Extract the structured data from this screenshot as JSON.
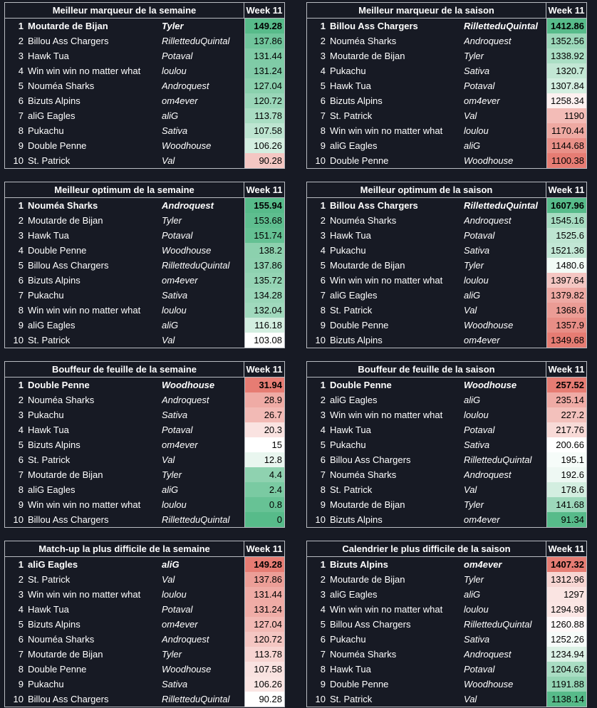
{
  "header_week": "Week 11",
  "tables": [
    {
      "title": "Meilleur marqueur de la semaine",
      "rows": [
        {
          "rank": "1",
          "team": "Moutarde de Bijan",
          "owner": "Tyler",
          "score": "149.28",
          "color": "#57bb8a"
        },
        {
          "rank": "2",
          "team": "Billou Ass Chargers",
          "owner": "RilletteduQuintal",
          "score": "137.86",
          "color": "#70c59c"
        },
        {
          "rank": "3",
          "team": "Hawk Tua",
          "owner": "Potaval",
          "score": "131.44",
          "color": "#7fcba6"
        },
        {
          "rank": "4",
          "team": "Win win win no matter what",
          "owner": "loulou",
          "score": "131.24",
          "color": "#80cba7"
        },
        {
          "rank": "5",
          "team": "Nouméa Sharks",
          "owner": "Androquest",
          "score": "127.04",
          "color": "#8ad0ad"
        },
        {
          "rank": "6",
          "team": "Bizuts Alpins",
          "owner": "om4ever",
          "score": "120.72",
          "color": "#99d6b8"
        },
        {
          "rank": "7",
          "team": "aliG Eagles",
          "owner": "aliG",
          "score": "113.78",
          "color": "#a9ddc3"
        },
        {
          "rank": "8",
          "team": "Pukachu",
          "owner": "Sativa",
          "score": "107.58",
          "color": "#bde5d1"
        },
        {
          "rank": "9",
          "team": "Double Penne",
          "owner": "Woodhouse",
          "score": "106.26",
          "color": "#d3eee0"
        },
        {
          "rank": "10",
          "team": "St. Patrick",
          "owner": "Val",
          "score": "90.28",
          "color": "#f4c7c3"
        }
      ]
    },
    {
      "title": "Meilleur marqueur de la saison",
      "rows": [
        {
          "rank": "1",
          "team": "Billou Ass Chargers",
          "owner": "RilletteduQuintal",
          "score": "1412.86",
          "color": "#57bb8a"
        },
        {
          "rank": "2",
          "team": "Nouméa Sharks",
          "owner": "Androquest",
          "score": "1352.56",
          "color": "#9bd7b9"
        },
        {
          "rank": "3",
          "team": "Moutarde de Bijan",
          "owner": "Tyler",
          "score": "1338.92",
          "color": "#aadec4"
        },
        {
          "rank": "4",
          "team": "Pukachu",
          "owner": "Sativa",
          "score": "1320.7",
          "color": "#c2e7d4"
        },
        {
          "rank": "5",
          "team": "Hawk Tua",
          "owner": "Potaval",
          "score": "1307.84",
          "color": "#d3eee0"
        },
        {
          "rank": "6",
          "team": "Bizuts Alpins",
          "owner": "om4ever",
          "score": "1258.34",
          "color": "#fdf1f0"
        },
        {
          "rank": "7",
          "team": "St. Patrick",
          "owner": "Val",
          "score": "1190",
          "color": "#f3bcb7"
        },
        {
          "rank": "8",
          "team": "Win win win no matter what",
          "owner": "loulou",
          "score": "1170.44",
          "color": "#eea9a2"
        },
        {
          "rank": "9",
          "team": "aliG Eagles",
          "owner": "aliG",
          "score": "1144.68",
          "color": "#e99088"
        },
        {
          "rank": "10",
          "team": "Double Penne",
          "owner": "Woodhouse",
          "score": "1100.38",
          "color": "#e67c73"
        }
      ]
    },
    {
      "title": "Meilleur optimum de la semaine",
      "rows": [
        {
          "rank": "1",
          "team": "Nouméa Sharks",
          "owner": "Androquest",
          "score": "155.94",
          "color": "#57bb8a"
        },
        {
          "rank": "2",
          "team": "Moutarde de Bijan",
          "owner": "Tyler",
          "score": "153.68",
          "color": "#5ebe8f"
        },
        {
          "rank": "3",
          "team": "Hawk Tua",
          "owner": "Potaval",
          "score": "151.74",
          "color": "#64c193"
        },
        {
          "rank": "4",
          "team": "Double Penne",
          "owner": "Woodhouse",
          "score": "138.2",
          "color": "#8cd1ae"
        },
        {
          "rank": "5",
          "team": "Billou Ass Chargers",
          "owner": "RilletteduQuintal",
          "score": "137.86",
          "color": "#8ed1b0"
        },
        {
          "rank": "6",
          "team": "Bizuts Alpins",
          "owner": "om4ever",
          "score": "135.72",
          "color": "#94d4b4"
        },
        {
          "rank": "7",
          "team": "Pukachu",
          "owner": "Sativa",
          "score": "134.28",
          "color": "#99d6b8"
        },
        {
          "rank": "8",
          "team": "Win win win no matter what",
          "owner": "loulou",
          "score": "132.04",
          "color": "#a0d9bd"
        },
        {
          "rank": "9",
          "team": "aliG Eagles",
          "owner": "aliG",
          "score": "116.18",
          "color": "#d3eee0"
        },
        {
          "rank": "10",
          "team": "St. Patrick",
          "owner": "Val",
          "score": "103.08",
          "color": "#ffffff"
        }
      ]
    },
    {
      "title": "Meilleur optimum de la saison",
      "rows": [
        {
          "rank": "1",
          "team": "Billou Ass Chargers",
          "owner": "RilletteduQuintal",
          "score": "1607.96",
          "color": "#57bb8a"
        },
        {
          "rank": "2",
          "team": "Nouméa Sharks",
          "owner": "Androquest",
          "score": "1545.16",
          "color": "#a6dcc1"
        },
        {
          "rank": "3",
          "team": "Hawk Tua",
          "owner": "Potaval",
          "score": "1525.6",
          "color": "#bde5d1"
        },
        {
          "rank": "4",
          "team": "Pukachu",
          "owner": "Sativa",
          "score": "1521.36",
          "color": "#c2e7d5"
        },
        {
          "rank": "5",
          "team": "Moutarde de Bijan",
          "owner": "Tyler",
          "score": "1480.6",
          "color": "#f2fbf6"
        },
        {
          "rank": "6",
          "team": "Win win win no matter what",
          "owner": "loulou",
          "score": "1397.64",
          "color": "#f4c6c2"
        },
        {
          "rank": "7",
          "team": "aliG Eagles",
          "owner": "aliG",
          "score": "1379.82",
          "color": "#eea9a3"
        },
        {
          "rank": "8",
          "team": "St. Patrick",
          "owner": "Val",
          "score": "1368.6",
          "color": "#eb9c95"
        },
        {
          "rank": "9",
          "team": "Double Penne",
          "owner": "Woodhouse",
          "score": "1357.9",
          "color": "#e88e86"
        },
        {
          "rank": "10",
          "team": "Bizuts Alpins",
          "owner": "om4ever",
          "score": "1349.68",
          "color": "#e67c73"
        }
      ]
    },
    {
      "title": "Bouffeur de feuille de la semaine",
      "rows": [
        {
          "rank": "1",
          "team": "Double Penne",
          "owner": "Woodhouse",
          "score": "31.94",
          "color": "#e67c73"
        },
        {
          "rank": "2",
          "team": "Nouméa Sharks",
          "owner": "Androquest",
          "score": "28.9",
          "color": "#efaba5"
        },
        {
          "rank": "3",
          "team": "Pukachu",
          "owner": "Sativa",
          "score": "26.7",
          "color": "#f2bab5"
        },
        {
          "rank": "4",
          "team": "Hawk Tua",
          "owner": "Potaval",
          "score": "20.3",
          "color": "#fae3e1"
        },
        {
          "rank": "5",
          "team": "Bizuts Alpins",
          "owner": "om4ever",
          "score": "15",
          "color": "#ffffff"
        },
        {
          "rank": "6",
          "team": "St. Patrick",
          "owner": "Val",
          "score": "12.8",
          "color": "#e9f6ef"
        },
        {
          "rank": "7",
          "team": "Moutarde de Bijan",
          "owner": "Tyler",
          "score": "4.4",
          "color": "#8fd2b0"
        },
        {
          "rank": "8",
          "team": "aliG Eagles",
          "owner": "aliG",
          "score": "2.4",
          "color": "#7acaa2"
        },
        {
          "rank": "9",
          "team": "Win win win no matter what",
          "owner": "loulou",
          "score": "0.8",
          "color": "#67c295"
        },
        {
          "rank": "10",
          "team": "Billou Ass Chargers",
          "owner": "RilletteduQuintal",
          "score": "0",
          "color": "#57bb8a"
        }
      ]
    },
    {
      "title": "Bouffeur de feuille de la saison",
      "rows": [
        {
          "rank": "1",
          "team": "Double Penne",
          "owner": "Woodhouse",
          "score": "257.52",
          "color": "#e67c73"
        },
        {
          "rank": "2",
          "team": "aliG Eagles",
          "owner": "aliG",
          "score": "235.14",
          "color": "#efaba5"
        },
        {
          "rank": "3",
          "team": "Win win win no matter what",
          "owner": "loulou",
          "score": "227.2",
          "color": "#f3c1bc"
        },
        {
          "rank": "4",
          "team": "Hawk Tua",
          "owner": "Potaval",
          "score": "217.76",
          "color": "#f8dad7"
        },
        {
          "rank": "5",
          "team": "Pukachu",
          "owner": "Sativa",
          "score": "200.66",
          "color": "#ffffff"
        },
        {
          "rank": "6",
          "team": "Billou Ass Chargers",
          "owner": "RilletteduQuintal",
          "score": "195.1",
          "color": "#f6fcf9"
        },
        {
          "rank": "7",
          "team": "Nouméa Sharks",
          "owner": "Androquest",
          "score": "192.6",
          "color": "#eef8f3"
        },
        {
          "rank": "8",
          "team": "St. Patrick",
          "owner": "Val",
          "score": "178.6",
          "color": "#d3eee0"
        },
        {
          "rank": "9",
          "team": "Moutarde de Bijan",
          "owner": "Tyler",
          "score": "141.68",
          "color": "#9dd8bb"
        },
        {
          "rank": "10",
          "team": "Bizuts Alpins",
          "owner": "om4ever",
          "score": "91.34",
          "color": "#57bb8a"
        }
      ]
    },
    {
      "title": "Match-up la plus difficile de la semaine",
      "rows": [
        {
          "rank": "1",
          "team": "aliG Eagles",
          "owner": "aliG",
          "score": "149.28",
          "color": "#e67c73"
        },
        {
          "rank": "2",
          "team": "St. Patrick",
          "owner": "Val",
          "score": "137.86",
          "color": "#ec9e97"
        },
        {
          "rank": "3",
          "team": "Win win win no matter what",
          "owner": "loulou",
          "score": "131.44",
          "color": "#efaba5"
        },
        {
          "rank": "4",
          "team": "Hawk Tua",
          "owner": "Potaval",
          "score": "131.24",
          "color": "#efaca6"
        },
        {
          "rank": "5",
          "team": "Bizuts Alpins",
          "owner": "om4ever",
          "score": "127.04",
          "color": "#f2b9b4"
        },
        {
          "rank": "6",
          "team": "Nouméa Sharks",
          "owner": "Androquest",
          "score": "120.72",
          "color": "#f4c6c2"
        },
        {
          "rank": "7",
          "team": "Moutarde de Bijan",
          "owner": "Tyler",
          "score": "113.78",
          "color": "#f7d4d1"
        },
        {
          "rank": "8",
          "team": "Double Penne",
          "owner": "Woodhouse",
          "score": "107.58",
          "color": "#f9e2e0"
        },
        {
          "rank": "9",
          "team": "Pukachu",
          "owner": "Sativa",
          "score": "106.26",
          "color": "#fae5e3"
        },
        {
          "rank": "10",
          "team": "Billou Ass Chargers",
          "owner": "RilletteduQuintal",
          "score": "90.28",
          "color": "#ffffff"
        }
      ]
    },
    {
      "title": "Calendrier le plus difficile de la saison",
      "rows": [
        {
          "rank": "1",
          "team": "Bizuts Alpins",
          "owner": "om4ever",
          "score": "1407.32",
          "color": "#e67c73"
        },
        {
          "rank": "2",
          "team": "Moutarde de Bijan",
          "owner": "Tyler",
          "score": "1312.96",
          "color": "#f7d5d2"
        },
        {
          "rank": "3",
          "team": "aliG Eagles",
          "owner": "aliG",
          "score": "1297",
          "color": "#fae4e2"
        },
        {
          "rank": "4",
          "team": "Win win win no matter what",
          "owner": "loulou",
          "score": "1294.98",
          "color": "#fbe6e4"
        },
        {
          "rank": "5",
          "team": "Billou Ass Chargers",
          "owner": "RilletteduQuintal",
          "score": "1260.88",
          "color": "#fef8f8"
        },
        {
          "rank": "6",
          "team": "Pukachu",
          "owner": "Sativa",
          "score": "1252.26",
          "color": "#f6fbf9"
        },
        {
          "rank": "7",
          "team": "Nouméa Sharks",
          "owner": "Androquest",
          "score": "1234.94",
          "color": "#dcf1e6"
        },
        {
          "rank": "8",
          "team": "Hawk Tua",
          "owner": "Potaval",
          "score": "1204.62",
          "color": "#a9ddc3"
        },
        {
          "rank": "9",
          "team": "Double Penne",
          "owner": "Woodhouse",
          "score": "1191.88",
          "color": "#94d4b4"
        },
        {
          "rank": "10",
          "team": "St. Patrick",
          "owner": "Val",
          "score": "1138.14",
          "color": "#57bb8a"
        }
      ]
    }
  ]
}
